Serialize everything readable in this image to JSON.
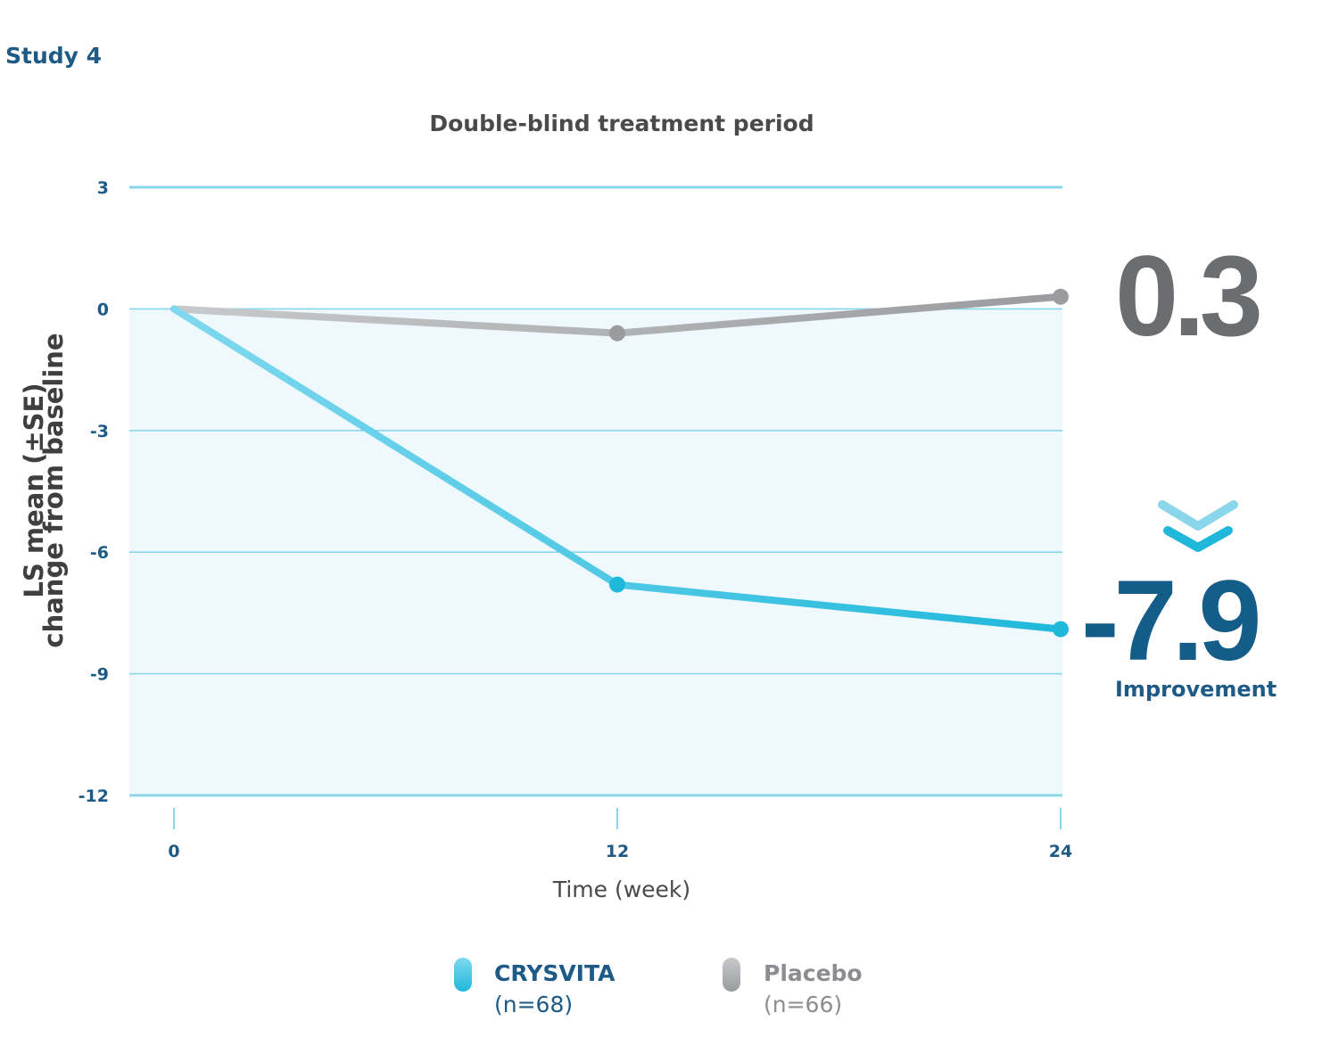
{
  "study_label": "Study 4",
  "chart_data": {
    "type": "line",
    "title": "Double-blind treatment period",
    "xlabel": "Time (week)",
    "ylabel_line1": "LS mean (±SE)",
    "ylabel_line2": "change from baseline",
    "x": [
      0,
      12,
      24
    ],
    "xticks": [
      "0",
      "12",
      "24"
    ],
    "yticks": [
      "3",
      "0",
      "-3",
      "-6",
      "-9",
      "-12"
    ],
    "ytick_values": [
      3,
      0,
      -3,
      -6,
      -9,
      -12
    ],
    "ylim": [
      -12,
      3
    ],
    "xlim": [
      0,
      24
    ],
    "series": [
      {
        "key": "crysvita",
        "name": "CRYSVITA",
        "n_label": "(n=68)",
        "values": [
          0,
          -6.8,
          -7.9
        ],
        "color": "#1fb8db",
        "color_start": "#7fd8ee"
      },
      {
        "key": "placebo",
        "name": "Placebo",
        "n_label": "(n=66)",
        "values": [
          0,
          -0.6,
          0.3
        ],
        "color": "#9a9b9e",
        "color_start": "#c8c9cb"
      }
    ],
    "annotations": {
      "placebo_final": "0.3",
      "crysvita_final": "-7.9",
      "improvement_label": "Improvement"
    },
    "colors": {
      "grid": "#8ad6ea",
      "plot_fill": "#eef8fd",
      "tick_text": "#1d5a86"
    }
  }
}
